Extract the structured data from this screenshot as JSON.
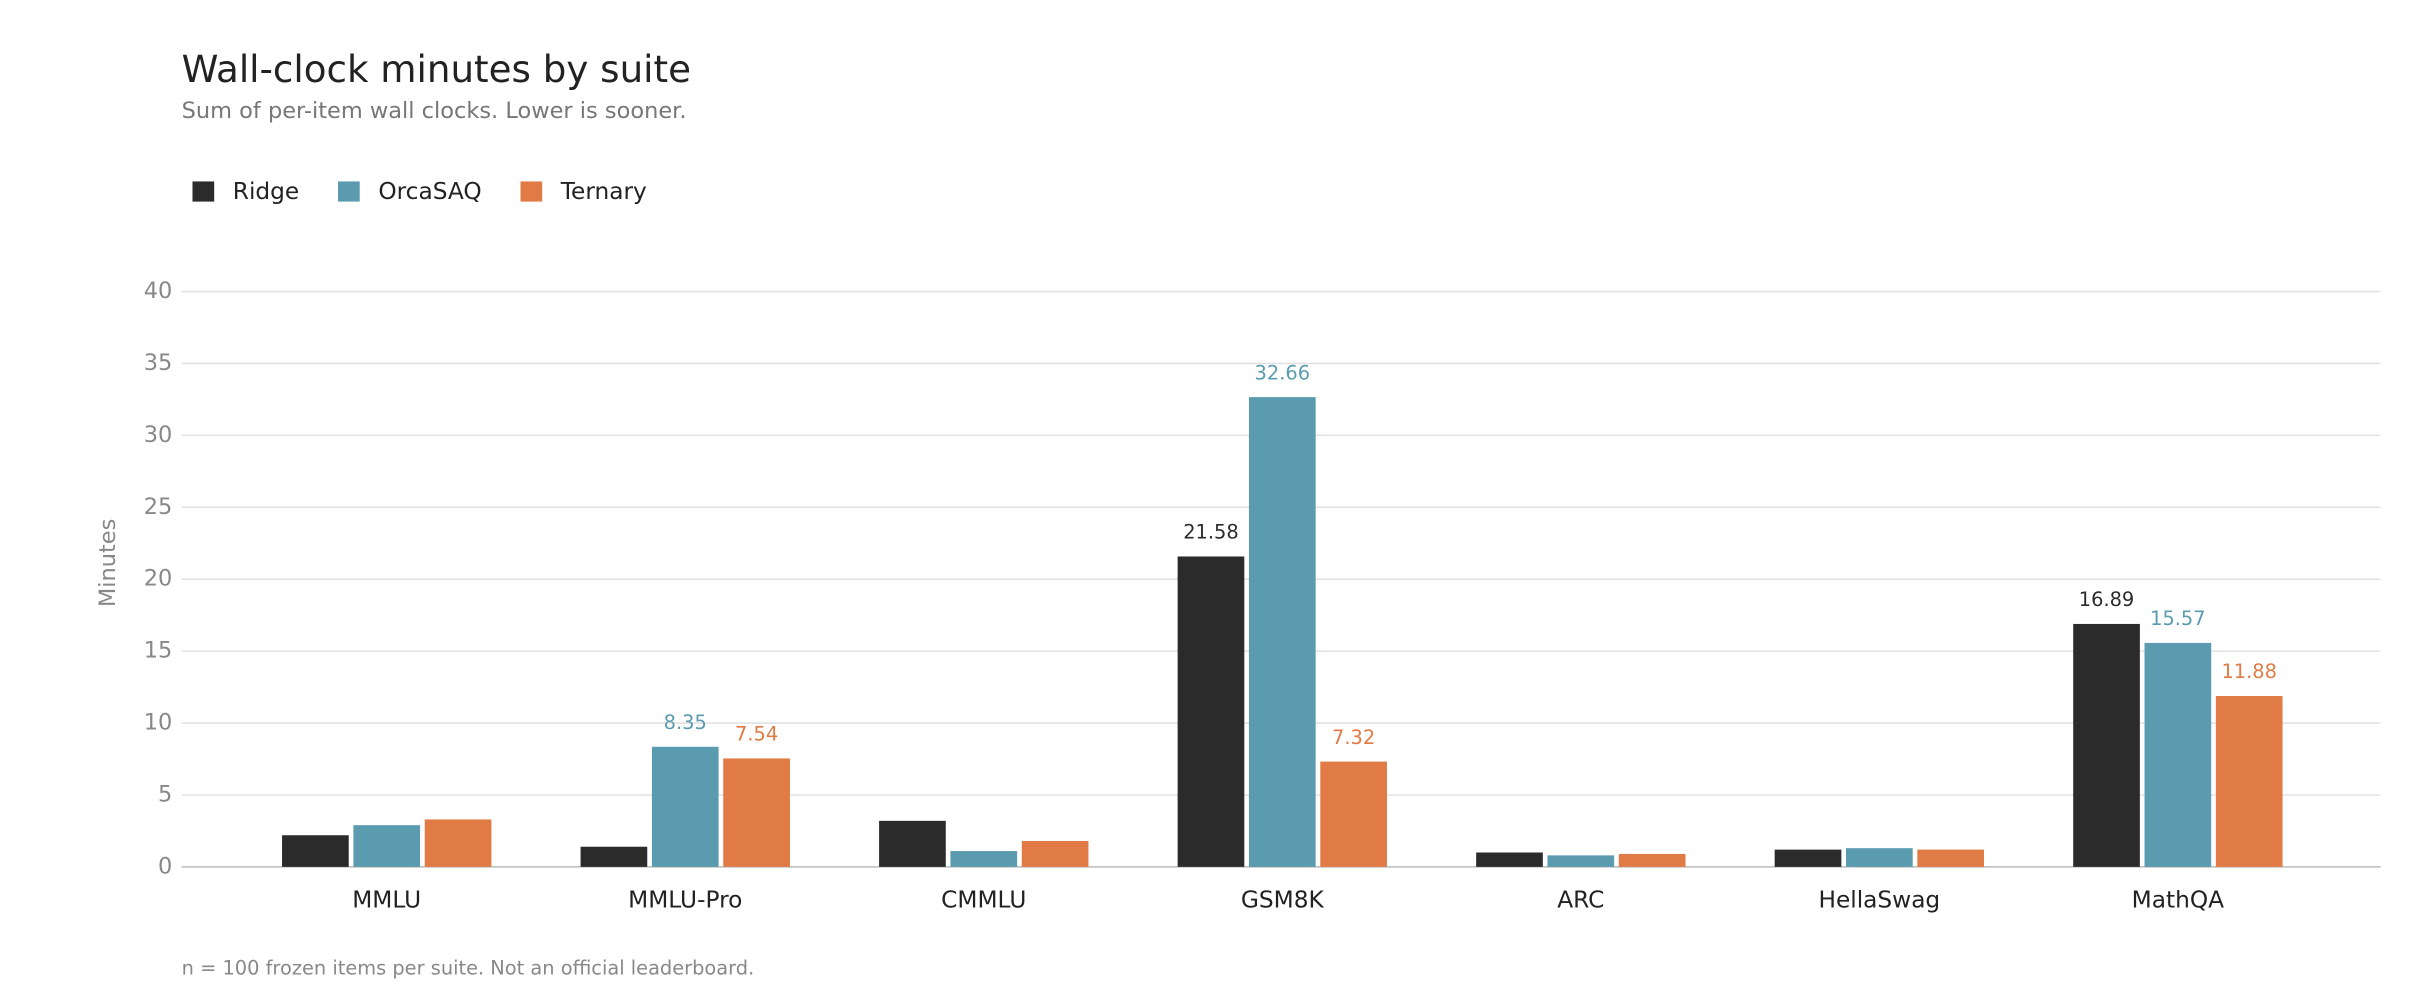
{
  "chart_data": {
    "type": "bar",
    "title": "Wall-clock minutes by suite",
    "subtitle": "Sum of per-item wall clocks. Lower is sooner.",
    "y_label": "Minutes",
    "footnote": "n = 100 frozen items per suite. Not an official leaderboard.",
    "categories": [
      "MMLU",
      "MMLU-Pro",
      "CMMLU",
      "GSM8K",
      "ARC",
      "HellaSwag",
      "MathQA"
    ],
    "series": [
      {
        "name": "Ridge",
        "color": "#2b2b2b",
        "values": [
          2.2,
          1.4,
          3.2,
          21.58,
          1.0,
          1.2,
          16.89
        ],
        "value_labels": [
          null,
          null,
          null,
          "21.58",
          null,
          null,
          "16.89"
        ]
      },
      {
        "name": "OrcaSAQ",
        "color": "#5b9bb0",
        "values": [
          2.9,
          8.35,
          1.1,
          32.66,
          0.8,
          1.3,
          15.57
        ],
        "value_labels": [
          null,
          "8.35",
          null,
          "32.66",
          null,
          null,
          "15.57"
        ]
      },
      {
        "name": "Ternary",
        "color": "#e07b45",
        "values": [
          3.3,
          7.54,
          1.8,
          7.32,
          0.9,
          1.2,
          11.88
        ],
        "value_labels": [
          null,
          "7.54",
          null,
          "7.32",
          null,
          null,
          "11.88"
        ]
      }
    ],
    "ylim": [
      0,
      40
    ],
    "yticks": [
      0,
      5,
      10,
      15,
      20,
      25,
      30,
      35,
      40
    ],
    "grid": true,
    "legend": "top-left"
  }
}
